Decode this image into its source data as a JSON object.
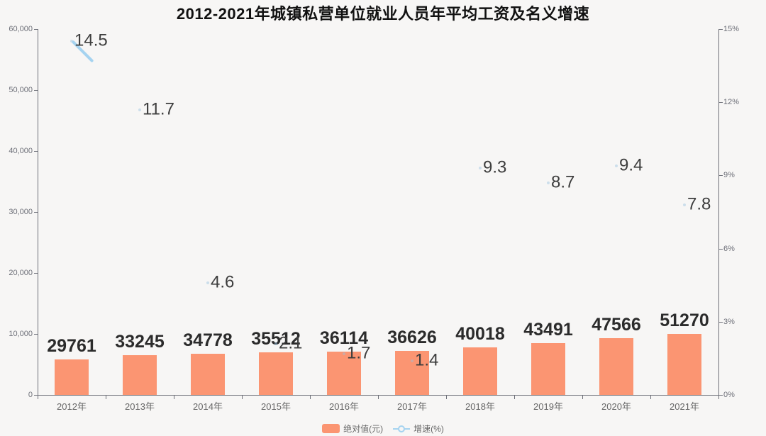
{
  "title": "2012-2021年城镇私营单位就业人员年平均工资及名义增速",
  "legend": {
    "bar_label": "绝对值(元)",
    "line_label": "增速(%)"
  },
  "colors": {
    "bar": "#fb9572",
    "line": "#a5d3f0",
    "axis": "#6e7079",
    "title_text": "#111111",
    "value_label_text": "#2b2b2b",
    "growth_label_text": "#3d3d3d",
    "background": "#f7f6f5"
  },
  "chart_data": {
    "type": "combo-bar-line",
    "title": "2012-2021年城镇私营单位就业人员年平均工资及名义增速",
    "categories": [
      "2012年",
      "2013年",
      "2014年",
      "2015年",
      "2016年",
      "2017年",
      "2018年",
      "2019年",
      "2020年",
      "2021年"
    ],
    "series": [
      {
        "name": "绝对值(元)",
        "type": "bar",
        "axis": "left",
        "color": "#fb9572",
        "values": [
          29761,
          33245,
          34778,
          35512,
          36114,
          36626,
          40018,
          43491,
          47566,
          51270
        ]
      },
      {
        "name": "增速(%)",
        "type": "line",
        "axis": "right",
        "color": "#a5d3f0",
        "values": [
          14.5,
          11.7,
          4.6,
          2.1,
          1.7,
          1.4,
          9.3,
          8.7,
          9.4,
          7.8
        ]
      }
    ],
    "left_axis": {
      "min": 0,
      "max": 60000,
      "tick_values": [
        0,
        10000,
        20000,
        30000,
        40000,
        50000,
        60000
      ],
      "tick_labels": [
        "0",
        "10,000",
        "20,000",
        "30,000",
        "40,000",
        "50,000",
        "60,000"
      ]
    },
    "right_axis": {
      "min": 0,
      "max": 15,
      "tick_values": [
        0,
        3,
        6,
        9,
        12,
        15
      ],
      "tick_labels": [
        "0%",
        "3%",
        "6%",
        "9%",
        "12%",
        "15%"
      ]
    },
    "grid": false,
    "legend_position": "bottom"
  }
}
